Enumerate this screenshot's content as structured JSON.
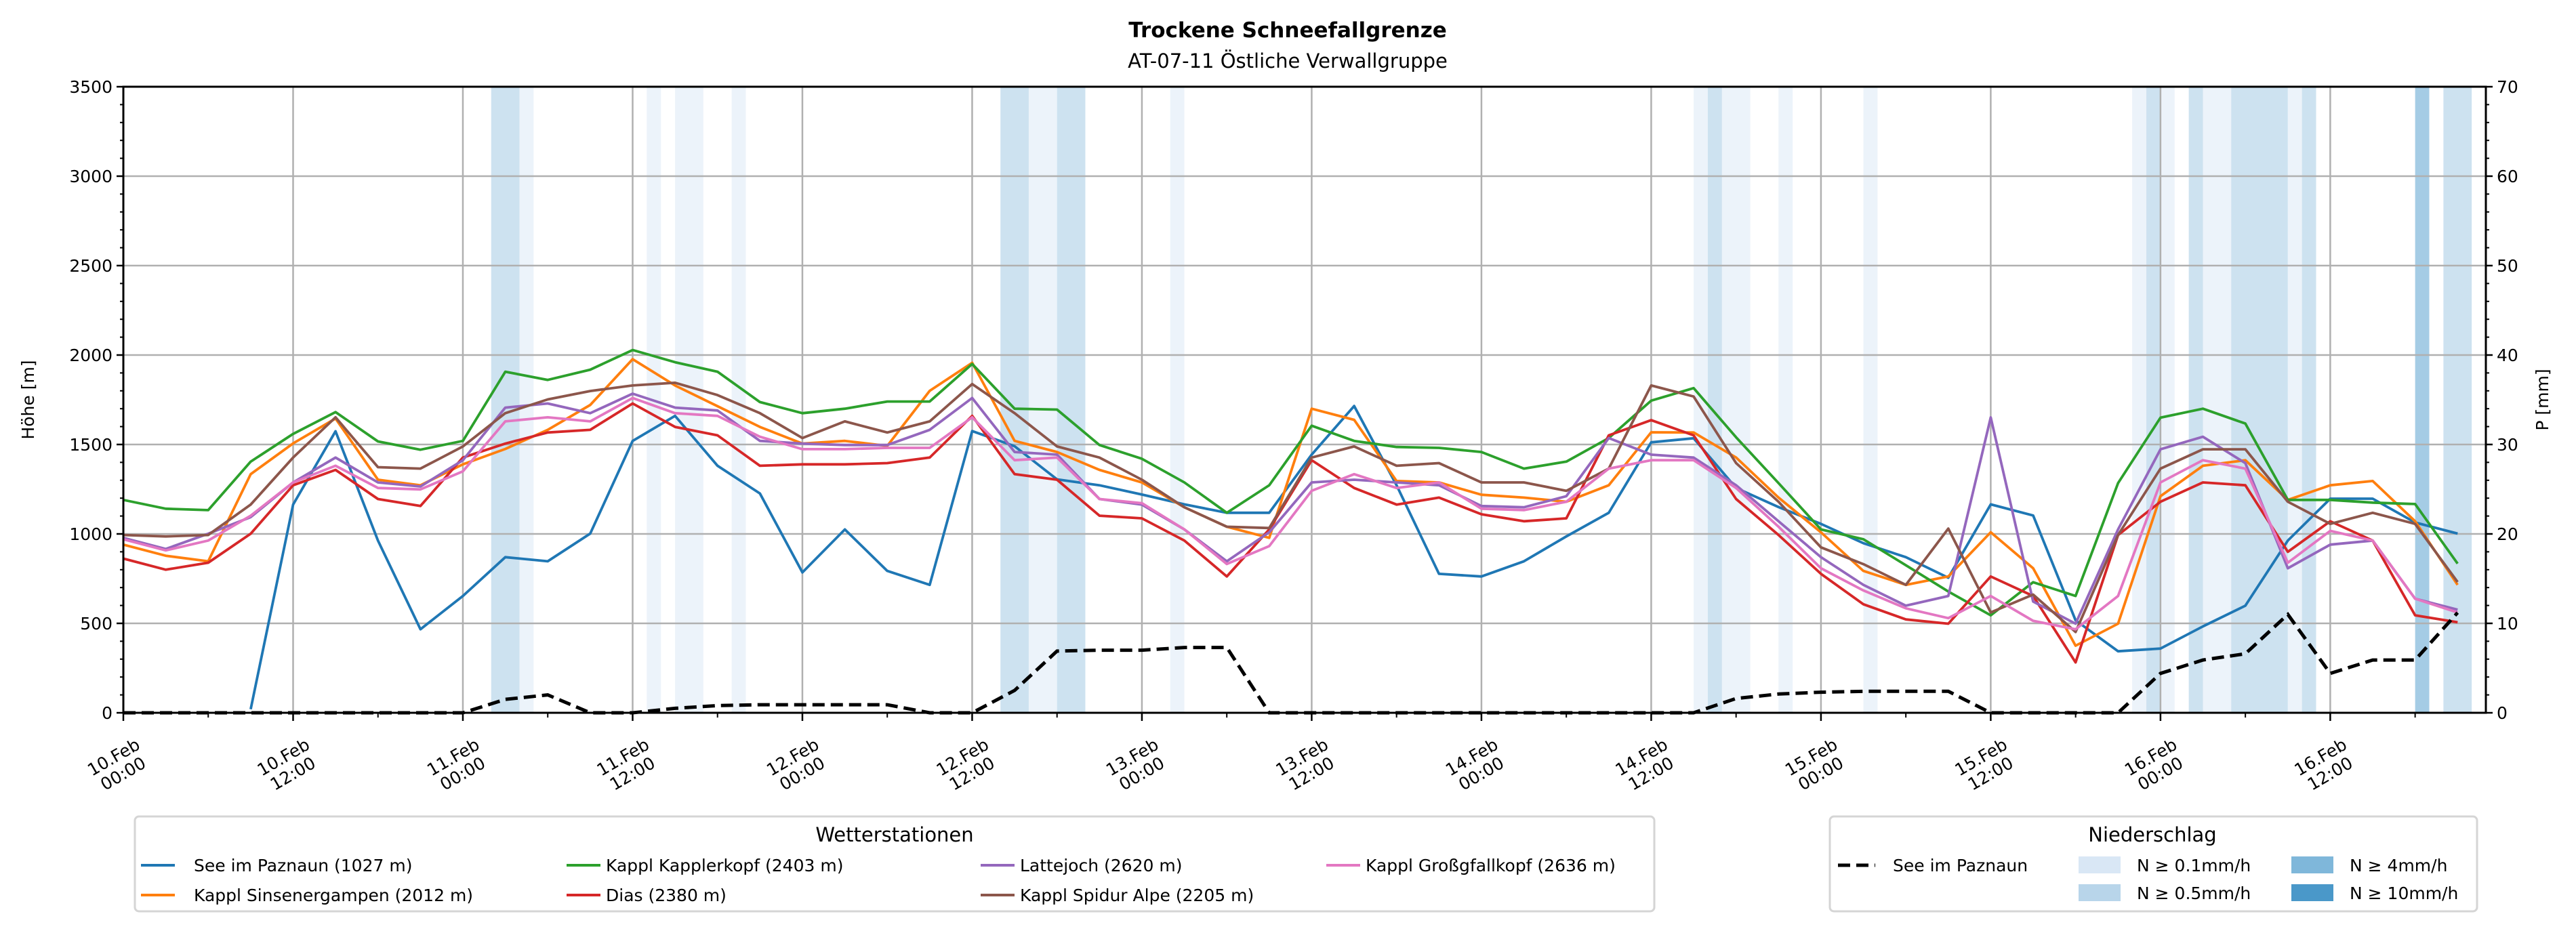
{
  "chart_data": {
    "type": "line",
    "title": "Trockene Schneefallgrenze",
    "subtitle": "AT-07-11 Östliche Verwallgruppe",
    "ylabel": "Höhe [m]",
    "ylabel_right": "P [mm]",
    "x_unit": "hours since 10.Feb 00:00",
    "x": [
      0,
      3,
      6,
      9,
      12,
      15,
      18,
      21,
      24,
      27,
      30,
      33,
      36,
      39,
      42,
      45,
      48,
      51,
      54,
      57,
      60,
      63,
      66,
      69,
      72,
      75,
      78,
      81,
      84,
      87,
      90,
      93,
      96,
      99,
      102,
      105,
      108,
      111,
      114,
      117,
      120,
      123,
      126,
      129,
      132,
      135,
      138,
      141,
      144,
      147,
      150,
      153,
      156,
      159,
      162,
      165
    ],
    "xlim": [
      0,
      167
    ],
    "ylim": [
      0,
      3500
    ],
    "ylim_right": [
      0,
      70
    ],
    "yticks": [
      "0",
      "500",
      "1000",
      "1500",
      "2000",
      "2500",
      "3000",
      "3500"
    ],
    "yticks_right": [
      "0",
      "10",
      "20",
      "30",
      "40",
      "50",
      "60",
      "70"
    ],
    "xticks": [
      {
        "h": 0,
        "date": "10.Feb",
        "time": "00:00"
      },
      {
        "h": 12,
        "date": "10.Feb",
        "time": "12:00"
      },
      {
        "h": 24,
        "date": "11.Feb",
        "time": "00:00"
      },
      {
        "h": 36,
        "date": "11.Feb",
        "time": "12:00"
      },
      {
        "h": 48,
        "date": "12.Feb",
        "time": "00:00"
      },
      {
        "h": 60,
        "date": "12.Feb",
        "time": "12:00"
      },
      {
        "h": 72,
        "date": "13.Feb",
        "time": "00:00"
      },
      {
        "h": 84,
        "date": "13.Feb",
        "time": "12:00"
      },
      {
        "h": 96,
        "date": "14.Feb",
        "time": "00:00"
      },
      {
        "h": 108,
        "date": "14.Feb",
        "time": "12:00"
      },
      {
        "h": 120,
        "date": "15.Feb",
        "time": "00:00"
      },
      {
        "h": 132,
        "date": "15.Feb",
        "time": "12:00"
      },
      {
        "h": 144,
        "date": "16.Feb",
        "time": "00:00"
      },
      {
        "h": 156,
        "date": "16.Feb",
        "time": "12:00"
      }
    ],
    "grid": true,
    "series": [
      {
        "name": "See im Paznaun (1027 m)",
        "color": "#1f77b4",
        "values": [
          null,
          null,
          null,
          20,
          1164,
          1574,
          963,
          467,
          653,
          870,
          847,
          1002,
          1520,
          1660,
          1381,
          1226,
          785,
          1025,
          793,
          715,
          1575,
          1490,
          1305,
          1272,
          1220,
          1165,
          1118,
          1118,
          1443,
          1715,
          1272,
          777,
          762,
          847,
          986,
          1118,
          1512,
          1535,
          1257,
          1150,
          1056,
          948,
          870,
          755,
          1165,
          1103,
          517,
          344,
          359,
          483,
          599,
          963,
          1197,
          1197,
          1064,
          1002
        ]
      },
      {
        "name": "Kappl Sinsenergampen (2012 m)",
        "color": "#ff7f0e",
        "values": [
          940,
          878,
          847,
          1334,
          1506,
          1645,
          1303,
          1272,
          1389,
          1475,
          1582,
          1721,
          1977,
          1830,
          1714,
          1598,
          1505,
          1520,
          1492,
          1800,
          1957,
          1520,
          1458,
          1358,
          1288,
          1149,
          1040,
          978,
          1700,
          1638,
          1296,
          1288,
          1219,
          1203,
          1180,
          1272,
          1568,
          1567,
          1427,
          1203,
          1009,
          793,
          715,
          762,
          1009,
          808,
          375,
          498,
          1211,
          1381,
          1412,
          1190,
          1272,
          1296,
          1071,
          715
        ]
      },
      {
        "name": "Kappl Kapplerkopf (2403 m)",
        "color": "#2ca02c",
        "values": [
          1190,
          1141,
          1133,
          1404,
          1559,
          1681,
          1517,
          1471,
          1520,
          1907,
          1861,
          1918,
          2028,
          1960,
          1907,
          1737,
          1675,
          1700,
          1740,
          1740,
          1950,
          1700,
          1695,
          1497,
          1420,
          1288,
          1118,
          1272,
          1605,
          1520,
          1486,
          1481,
          1458,
          1365,
          1404,
          1536,
          1745,
          1815,
          1540,
          1284,
          1025,
          970,
          825,
          678,
          545,
          730,
          653,
          1284,
          1650,
          1700,
          1617,
          1190,
          1190,
          1175,
          1167,
          834
        ]
      },
      {
        "name": "Dias (2380 m)",
        "color": "#d62728",
        "values": [
          862,
          800,
          839,
          1001,
          1272,
          1358,
          1195,
          1156,
          1427,
          1505,
          1567,
          1582,
          1729,
          1598,
          1551,
          1381,
          1389,
          1389,
          1396,
          1427,
          1660,
          1334,
          1303,
          1102,
          1087,
          963,
          762,
          1025,
          1412,
          1257,
          1164,
          1203,
          1110,
          1071,
          1087,
          1551,
          1636,
          1551,
          1195,
          994,
          777,
          607,
          522,
          498,
          762,
          653,
          282,
          994,
          1180,
          1288,
          1272,
          900,
          1071,
          963,
          545,
          506
        ]
      },
      {
        "name": "Lattejoch (2620 m)",
        "color": "#9467bd",
        "values": [
          978,
          916,
          1001,
          1094,
          1288,
          1427,
          1288,
          1265,
          1412,
          1706,
          1729,
          1675,
          1784,
          1706,
          1690,
          1520,
          1505,
          1497,
          1497,
          1582,
          1760,
          1458,
          1443,
          1195,
          1164,
          1025,
          847,
          1009,
          1288,
          1303,
          1288,
          1272,
          1156,
          1149,
          1211,
          1536,
          1443,
          1427,
          1272,
          1071,
          870,
          715,
          599,
          653,
          1651,
          622,
          498,
          1025,
          1473,
          1543,
          1396,
          808,
          940,
          963,
          638,
          576
        ]
      },
      {
        "name": "Kappl Spidur Alpe (2205 m)",
        "color": "#8c564b",
        "values": [
          994,
          986,
          994,
          1164,
          1427,
          1652,
          1373,
          1365,
          1489,
          1675,
          1752,
          1799,
          1830,
          1845,
          1776,
          1675,
          1536,
          1629,
          1567,
          1629,
          1838,
          1675,
          1489,
          1427,
          1303,
          1149,
          1040,
          1033,
          1427,
          1489,
          1381,
          1396,
          1288,
          1288,
          1241,
          1365,
          1830,
          1768,
          1396,
          1180,
          925,
          831,
          715,
          1030,
          561,
          661,
          452,
          994,
          1365,
          1473,
          1473,
          1180,
          1056,
          1118,
          1056,
          731
        ]
      },
      {
        "name": "Kappl Großgfallkopf (2636 m)",
        "color": "#e377c2",
        "values": [
          970,
          908,
          963,
          1102,
          1288,
          1381,
          1257,
          1249,
          1350,
          1629,
          1652,
          1629,
          1760,
          1675,
          1660,
          1543,
          1474,
          1474,
          1481,
          1481,
          1652,
          1412,
          1427,
          1195,
          1172,
          1025,
          832,
          932,
          1241,
          1334,
          1257,
          1288,
          1141,
          1133,
          1180,
          1365,
          1412,
          1412,
          1257,
          1040,
          808,
          684,
          584,
          529,
          653,
          514,
          467,
          653,
          1288,
          1412,
          1365,
          839,
          1017,
          963,
          638,
          561
        ]
      }
    ],
    "precipitation": {
      "name": "See im Paznaun",
      "axis": "right",
      "unit": "mm",
      "color": "#000000",
      "values": [
        0,
        0,
        0,
        0,
        0,
        0,
        0,
        0,
        0,
        1.5,
        2.0,
        0,
        0,
        0.5,
        0.8,
        0.9,
        0.9,
        0.9,
        0.9,
        0,
        0,
        2.5,
        6.9,
        7.0,
        7.0,
        7.3,
        7.3,
        0,
        0,
        0,
        0,
        0,
        0,
        0,
        0,
        0,
        0,
        0,
        1.6,
        2.1,
        2.3,
        2.4,
        2.4,
        2.4,
        0,
        0,
        0,
        0,
        4.4,
        5.9,
        6.6,
        11.0,
        4.4,
        5.9,
        5.9,
        11.2
      ]
    },
    "precip_bands": [
      {
        "start": 26,
        "end": 28,
        "level": 1
      },
      {
        "start": 28,
        "end": 29,
        "level": 0
      },
      {
        "start": 37,
        "end": 38,
        "level": 0
      },
      {
        "start": 39,
        "end": 41,
        "level": 0
      },
      {
        "start": 43,
        "end": 44,
        "level": 0
      },
      {
        "start": 62,
        "end": 64,
        "level": 1
      },
      {
        "start": 64,
        "end": 66,
        "level": 0
      },
      {
        "start": 66,
        "end": 68,
        "level": 1
      },
      {
        "start": 74,
        "end": 75,
        "level": 0
      },
      {
        "start": 111,
        "end": 112,
        "level": 0
      },
      {
        "start": 112,
        "end": 113,
        "level": 1
      },
      {
        "start": 113,
        "end": 115,
        "level": 0
      },
      {
        "start": 117,
        "end": 118,
        "level": 0
      },
      {
        "start": 123,
        "end": 124,
        "level": 0
      },
      {
        "start": 142,
        "end": 143,
        "level": 0
      },
      {
        "start": 143,
        "end": 144,
        "level": 1
      },
      {
        "start": 144,
        "end": 145,
        "level": 0
      },
      {
        "start": 146,
        "end": 147,
        "level": 1
      },
      {
        "start": 147,
        "end": 149,
        "level": 0
      },
      {
        "start": 149,
        "end": 153,
        "level": 1
      },
      {
        "start": 153,
        "end": 154,
        "level": 0
      },
      {
        "start": 154,
        "end": 155,
        "level": 1
      },
      {
        "start": 162,
        "end": 163,
        "level": 2
      },
      {
        "start": 164,
        "end": 166,
        "level": 1
      }
    ],
    "legend_stations": {
      "title": "Wetterstationen",
      "placement": "bottom-left"
    },
    "legend_precip": {
      "title": "Niederschlag",
      "placement": "bottom-right",
      "line_label": "See im Paznaun",
      "levels": [
        {
          "label": "N ≥ 0.1mm/h",
          "color": "#d9e7f5"
        },
        {
          "label": "N ≥ 0.5mm/h",
          "color": "#b8d5ea"
        },
        {
          "label": "N ≥ 4mm/h",
          "color": "#7fb7da"
        },
        {
          "label": "N ≥ 10mm/h",
          "color": "#4a98c9"
        }
      ]
    }
  }
}
